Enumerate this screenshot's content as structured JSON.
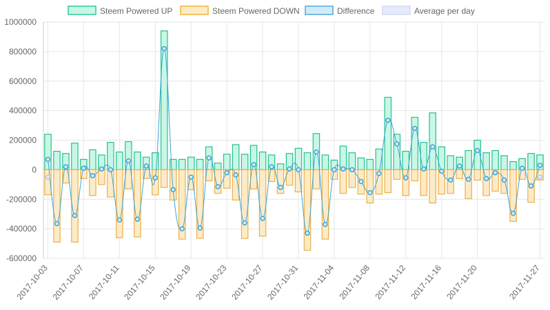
{
  "chart_data": {
    "type": "bar",
    "legend": {
      "position": "top",
      "items": [
        {
          "label": "Steem Powered UP",
          "fill": "#c9f7e6",
          "stroke": "#2ecc9a"
        },
        {
          "label": "Steem Powered DOWN",
          "fill": "#fdebc8",
          "stroke": "#f0b43c"
        },
        {
          "label": "Difference",
          "fill": "#d3ebf9",
          "stroke": "#4fa8d8"
        },
        {
          "label": "Average per day",
          "fill": "#e6ebfb",
          "stroke": "#d3daf3"
        }
      ]
    },
    "colors": {
      "up_fill": "#c9f7e6",
      "up_stroke": "#22c08e",
      "down_fill": "#fdebc8",
      "down_stroke": "#eab04a",
      "diff_line": "#3ea5d3",
      "avg_point": "#bcc4d6",
      "grid": "#e6e6e6",
      "zero": "#bdbdbd"
    },
    "ylim": [
      -600000,
      1000000
    ],
    "yticks": [
      "1000000",
      "800000",
      "600000",
      "400000",
      "200000",
      "0",
      "-200000",
      "-400000",
      "-600000"
    ],
    "xtick_labels": [
      "2017-10-03",
      "2017-10-07",
      "2017-10-11",
      "2017-10-15",
      "2017-10-19",
      "2017-10-23",
      "2017-10-27",
      "2017-10-31",
      "2017-11-04",
      "2017-11-08",
      "2017-11-12",
      "2017-11-16",
      "2017-11-20",
      "2017-11-27"
    ],
    "xtick_indices": [
      0,
      4,
      8,
      12,
      16,
      20,
      24,
      28,
      32,
      36,
      40,
      44,
      48,
      55
    ],
    "grid": true,
    "series": [
      {
        "name": "Steem Powered UP",
        "values": [
          240000,
          125000,
          110000,
          180000,
          70000,
          135000,
          100000,
          185000,
          120000,
          190000,
          120000,
          85000,
          115000,
          940000,
          70000,
          70000,
          85000,
          70000,
          155000,
          45000,
          105000,
          170000,
          105000,
          165000,
          120000,
          100000,
          40000,
          110000,
          145000,
          115000,
          245000,
          100000,
          65000,
          160000,
          115000,
          80000,
          70000,
          140000,
          490000,
          240000,
          125000,
          355000,
          185000,
          385000,
          155000,
          95000,
          85000,
          130000,
          200000,
          115000,
          130000,
          95000,
          55000,
          75000,
          110000,
          100000
        ]
      },
      {
        "name": "Steem Powered DOWN",
        "values": [
          -170000,
          -490000,
          -90000,
          -490000,
          -60000,
          -175000,
          -100000,
          -185000,
          -460000,
          -130000,
          -455000,
          -60000,
          -170000,
          -120000,
          -205000,
          -470000,
          -135000,
          -465000,
          -75000,
          -160000,
          -125000,
          -205000,
          -465000,
          -130000,
          -450000,
          -80000,
          -160000,
          -105000,
          -150000,
          -545000,
          -130000,
          -470000,
          -65000,
          -160000,
          -120000,
          -165000,
          -225000,
          -165000,
          -155000,
          -65000,
          -175000,
          -75000,
          -175000,
          -225000,
          -165000,
          -160000,
          -60000,
          -195000,
          -70000,
          -175000,
          -145000,
          -160000,
          -350000,
          -65000,
          -220000,
          -70000
        ]
      },
      {
        "name": "Difference",
        "values": [
          70000,
          -365000,
          20000,
          -310000,
          10000,
          -40000,
          5000,
          0,
          -340000,
          60000,
          -335000,
          25000,
          -55000,
          820000,
          -135000,
          -400000,
          -50000,
          -395000,
          80000,
          -115000,
          -20000,
          -35000,
          -360000,
          35000,
          -330000,
          20000,
          -120000,
          5000,
          0,
          -430000,
          120000,
          -370000,
          0,
          5000,
          0,
          -80000,
          -155000,
          -25000,
          335000,
          175000,
          -55000,
          280000,
          5000,
          155000,
          -10000,
          -70000,
          25000,
          -65000,
          130000,
          -60000,
          -20000,
          -70000,
          -295000,
          10000,
          -110000,
          30000
        ]
      },
      {
        "name": "Average per day",
        "values": [
          -50000,
          null,
          null,
          null,
          null,
          null,
          null,
          null,
          null,
          null,
          null,
          null,
          null,
          null,
          null,
          null,
          null,
          null,
          null,
          null,
          null,
          null,
          null,
          null,
          null,
          null,
          null,
          null,
          null,
          null,
          null,
          null,
          null,
          null,
          null,
          null,
          null,
          null,
          null,
          null,
          null,
          null,
          null,
          null,
          null,
          null,
          null,
          null,
          null,
          null,
          null,
          null,
          null,
          null,
          null,
          -50000
        ]
      }
    ]
  }
}
